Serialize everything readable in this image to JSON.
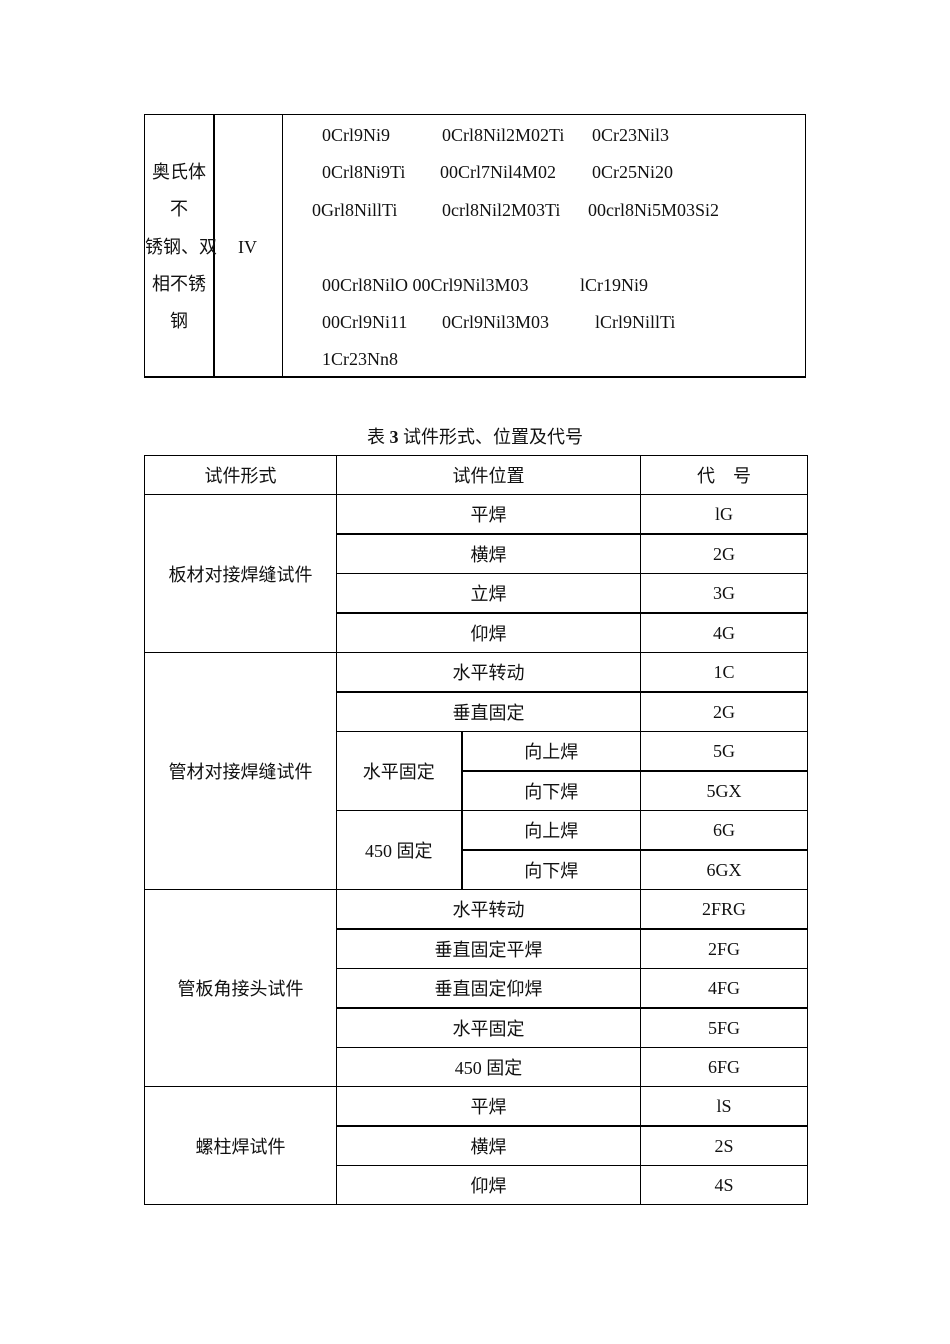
{
  "table2": {
    "category_lines": [
      "奥氏体",
      "不",
      "锈钢、双",
      "相不锈",
      "钢"
    ],
    "grade": "IV",
    "materials": [
      [
        "0Crl9Ni9",
        "0Crl8Nil2M02Ti",
        "0Cr23Nil3"
      ],
      [
        "0Crl8Ni9Ti",
        "00Crl7Nil4M02",
        "0Cr25Ni20"
      ],
      [
        "0Grl8NillTi",
        "0crl8Nil2M03Ti",
        "00crl8Ni5M03Si2"
      ],
      [
        "00Crl8NilO 00Crl9Nil3M03",
        "",
        "lCr19Ni9"
      ],
      [
        "00Crl9Ni11",
        "0Crl9Nil3M03",
        "lCrl9NillTi"
      ],
      [
        "1Cr23Nn8",
        "",
        ""
      ]
    ]
  },
  "caption": {
    "prefix": "表 ",
    "number": "3",
    "text": " 试件形式、位置及代号"
  },
  "table3": {
    "headers": [
      "试件形式",
      "试件位置",
      "代　号"
    ],
    "groups": [
      {
        "form": "板材对接焊缝试件",
        "rows": [
          {
            "position": "平焊",
            "code": "lG"
          },
          {
            "position": "横焊",
            "code": "2G"
          },
          {
            "position": "立焊",
            "code": "3G"
          },
          {
            "position": "仰焊",
            "code": "4G"
          }
        ]
      },
      {
        "form": "管材对接焊缝试件",
        "rows": [
          {
            "position": "水平转动",
            "code": "1C"
          },
          {
            "position": "垂直固定",
            "code": "2G"
          },
          {
            "position_group": "水平固定",
            "position": "向上焊",
            "code": "5G"
          },
          {
            "position_group": "水平固定",
            "position": "向下焊",
            "code": "5GX"
          },
          {
            "position_group": "450 固定",
            "position": "向上焊",
            "code": "6G"
          },
          {
            "position_group": "450 固定",
            "position": "向下焊",
            "code": "6GX"
          }
        ]
      },
      {
        "form": "管板角接头试件",
        "rows": [
          {
            "position": "水平转动",
            "code": "2FRG"
          },
          {
            "position": "垂直固定平焊",
            "code": "2FG"
          },
          {
            "position": "垂直固定仰焊",
            "code": "4FG"
          },
          {
            "position": "水平固定",
            "code": "5FG"
          },
          {
            "position": "450 固定",
            "code": "6FG"
          }
        ]
      },
      {
        "form": "螺柱焊试件",
        "rows": [
          {
            "position": "平焊",
            "code": "lS"
          },
          {
            "position": "横焊",
            "code": "2S"
          },
          {
            "position": "仰焊",
            "code": "4S"
          }
        ]
      }
    ]
  }
}
